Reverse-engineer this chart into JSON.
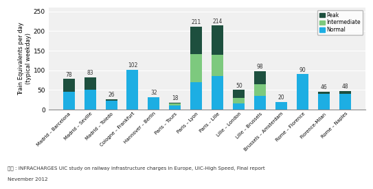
{
  "categories": [
    "Madrid – Barcelona",
    "Madrid – Seville",
    "Madrid – Toledo",
    "Cologne – Frankfurt",
    "Hannover – Berlin",
    "Paris – Tours",
    "Paris – Lyon",
    "Paris – Lille",
    "Lille – London",
    "Lille – Brussels",
    "Brussels – Amsterdam",
    "Rome – Florence",
    "Florence-Milan",
    "Rome – Naples"
  ],
  "totals": [
    78,
    83,
    26,
    102,
    32,
    18,
    211,
    214,
    50,
    98,
    20,
    90,
    46,
    48
  ],
  "normal": [
    45,
    50,
    22,
    102,
    32,
    10,
    70,
    85,
    15,
    35,
    20,
    90,
    40,
    40
  ],
  "intermediate": [
    0,
    0,
    0,
    0,
    0,
    5,
    72,
    55,
    15,
    30,
    0,
    0,
    0,
    0
  ],
  "peak": [
    33,
    33,
    4,
    0,
    0,
    3,
    69,
    74,
    20,
    33,
    0,
    0,
    6,
    8
  ],
  "color_normal": "#1daee3",
  "color_intermediate": "#7dc97e",
  "color_peak": "#1d4f3e",
  "ylabel": "Train Equivalents per day\n(typical weekday)",
  "ylim": [
    0,
    260
  ],
  "yticks": [
    0,
    50,
    100,
    150,
    200,
    250
  ],
  "legend_labels": [
    "Peak",
    "Intermediate",
    "Normal"
  ],
  "legend_colors": [
    "#1d4f3e",
    "#7dc97e",
    "#1daee3"
  ],
  "footer_line1": "자료 : INFRACHARGES UIC study on railway infrastructure charges in Europe, UIC-High Speed, Final report",
  "footer_line2": "Nevember 2012",
  "bar_width": 0.55,
  "bg_color": "#f0f0f0"
}
